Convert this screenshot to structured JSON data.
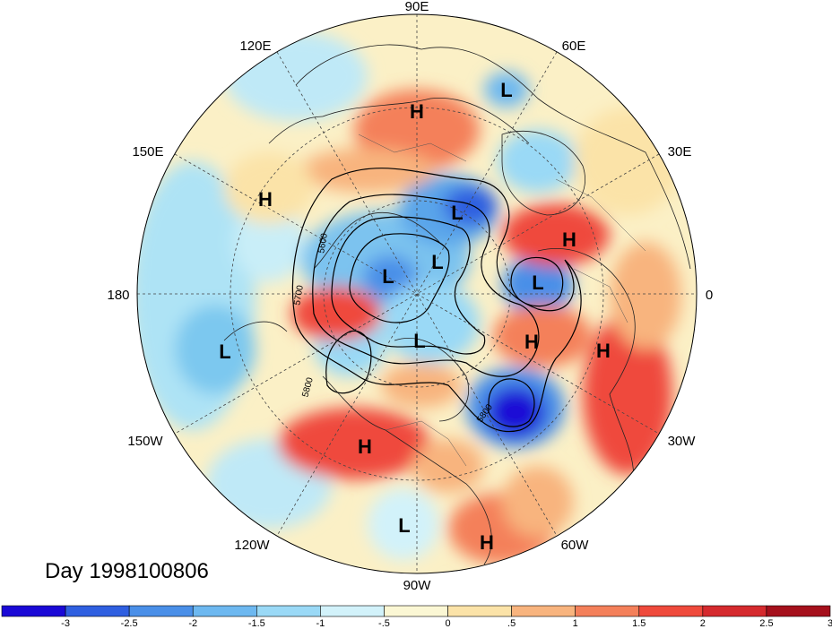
{
  "title": "Day 1998100806",
  "longitude_labels": {
    "lon_90e": "90E",
    "lon_120e": "120E",
    "lon_60e": "60E",
    "lon_150e": "150E",
    "lon_30e": "30E",
    "lon_180": "180",
    "lon_0": "0",
    "lon_150w": "150W",
    "lon_30w": "30W",
    "lon_120w": "120W",
    "lon_60w": "60W",
    "lon_90w": "90W"
  },
  "pressure_centers": {
    "h_siberia": "H",
    "l_kara": "L",
    "h_kamchatka": "H",
    "l_laptev": "L",
    "h_europe": "H",
    "l_arctic_a": "L",
    "l_arctic_b": "L",
    "l_europe": "L",
    "l_canada": "L",
    "h_atlantic": "H",
    "h_africa": "H",
    "l_pacific": "L",
    "h_usa": "H",
    "l_mexico": "L",
    "h_southamerica": "H"
  },
  "contour_labels": {
    "c5600": "5600",
    "c5700": "5700",
    "c5800_west": "5800",
    "c5800_east": "5800"
  },
  "colorbar": {
    "colors": [
      "#1a08d6",
      "#2f5fe0",
      "#4a8fe8",
      "#6db8f0",
      "#9ad9f6",
      "#d2f2fa",
      "#fbf7d4",
      "#fbe3a8",
      "#f8b47e",
      "#f4805a",
      "#ef4a3c",
      "#d52a2e",
      "#a5101c"
    ],
    "labels": [
      "-3",
      "-2.5",
      "-2",
      "-1.5",
      "-1",
      "-.5",
      "0",
      ".5",
      "1",
      "1.5",
      "2",
      "2.5",
      "3"
    ]
  }
}
